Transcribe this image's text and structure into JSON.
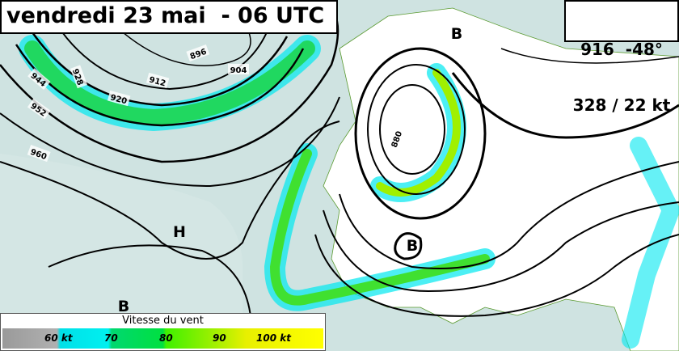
{
  "header": {
    "title": "vendredi 23 mai  - 06 UTC"
  },
  "info": {
    "line1": "916  -48°",
    "line2": "328 / 22 kt"
  },
  "contour_labels": [
    "896",
    "904",
    "912",
    "920",
    "928",
    "944",
    "952",
    "960",
    "880"
  ],
  "centers": [
    "B",
    "H",
    "B",
    "B"
  ],
  "legend": {
    "title": "Vitesse du vent",
    "labels": [
      "60 kt",
      "70",
      "80",
      "90",
      "100 kt"
    ]
  }
}
